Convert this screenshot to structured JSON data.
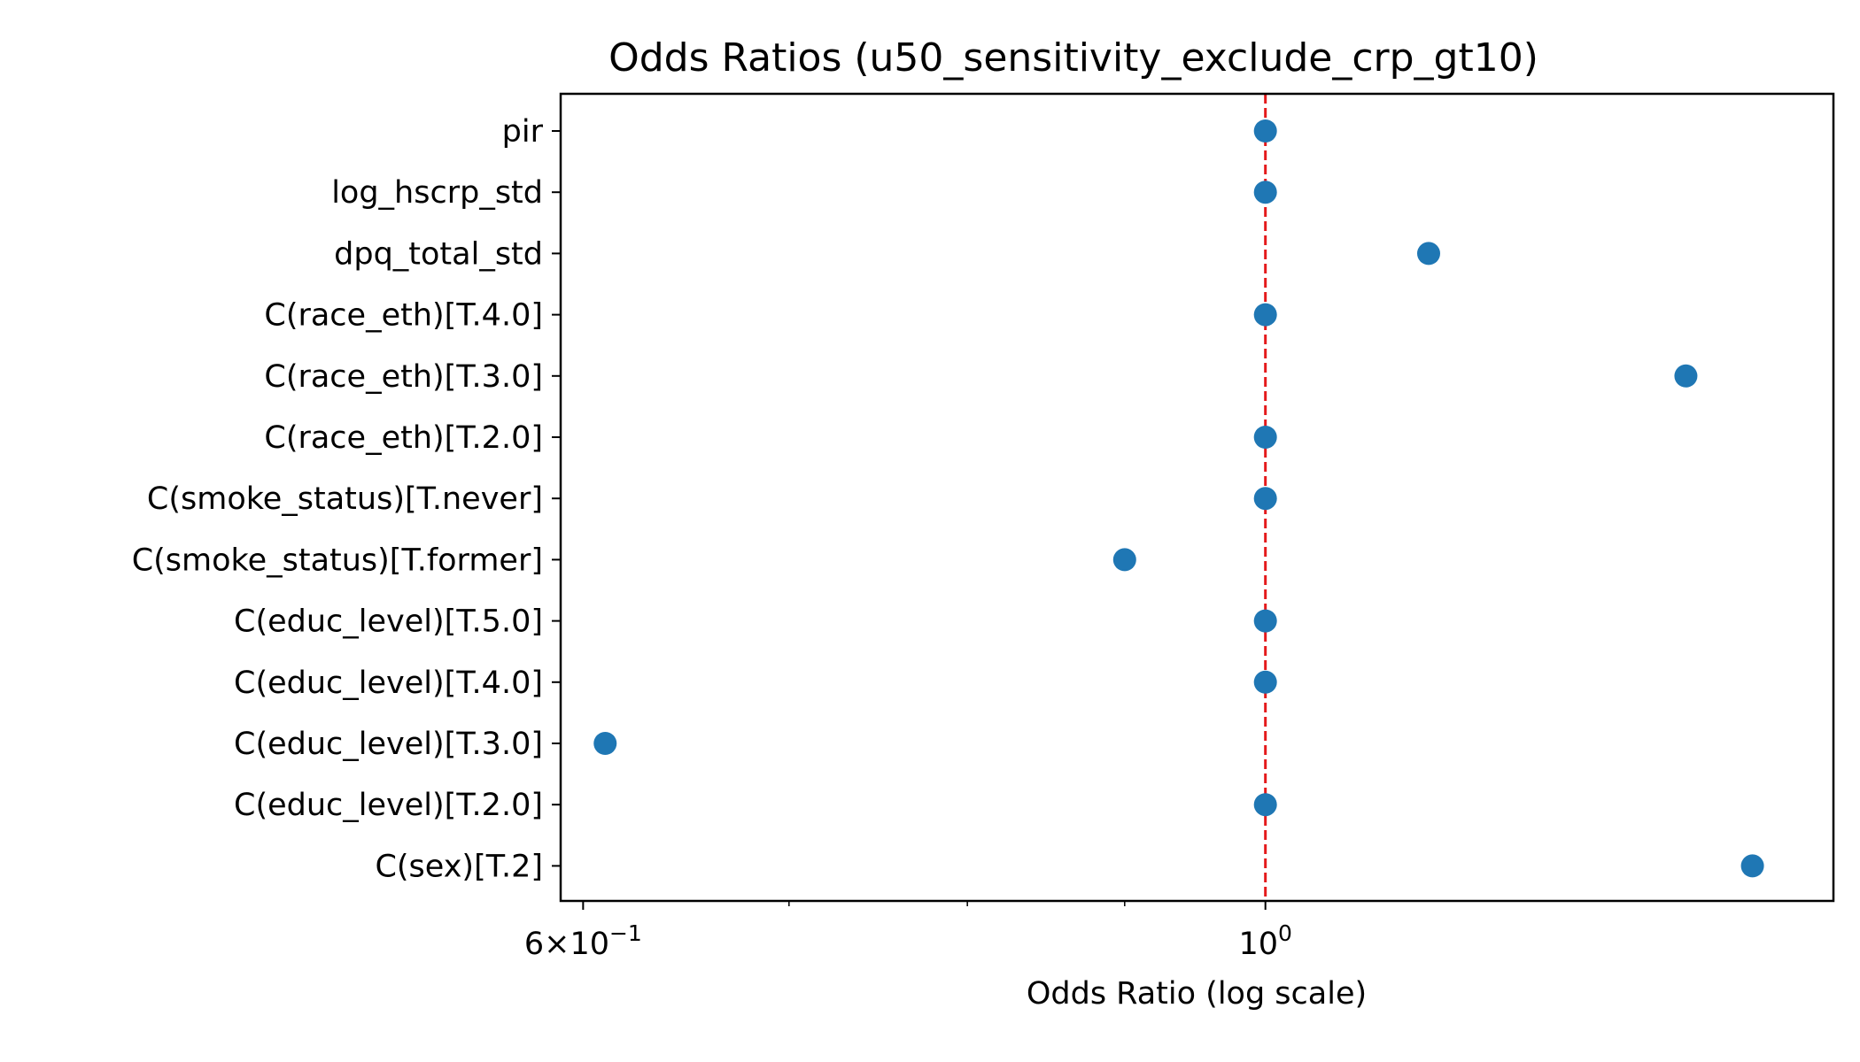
{
  "chart_data": {
    "type": "scatter",
    "title": "Odds Ratios (u50_sensitivity_exclude_crp_gt10)",
    "xlabel": "Odds Ratio (log scale)",
    "ylabel": "",
    "xscale": "log",
    "xlim": [
      0.59,
      1.53
    ],
    "x_ticks": [
      {
        "value": 0.6,
        "base": "6×10",
        "exp": "−1"
      },
      {
        "value": 1.0,
        "base": "10",
        "exp": "0"
      }
    ],
    "x_minor_ticks": [
      0.7,
      0.8,
      0.9
    ],
    "reference_line": {
      "x": 1.0,
      "color": "#e41a1c",
      "style": "dashed"
    },
    "marker_color": "#1f77b4",
    "grid": false,
    "categories": [
      "pir",
      "log_hscrp_std",
      "dpq_total_std",
      "C(race_eth)[T.4.0]",
      "C(race_eth)[T.3.0]",
      "C(race_eth)[T.2.0]",
      "C(smoke_status)[T.never]",
      "C(smoke_status)[T.former]",
      "C(educ_level)[T.5.0]",
      "C(educ_level)[T.4.0]",
      "C(educ_level)[T.3.0]",
      "C(educ_level)[T.2.0]",
      "C(sex)[T.2]"
    ],
    "values": [
      1.0,
      1.0,
      1.13,
      1.0,
      1.37,
      1.0,
      1.0,
      0.9,
      1.0,
      1.0,
      0.61,
      1.0,
      1.44
    ]
  }
}
